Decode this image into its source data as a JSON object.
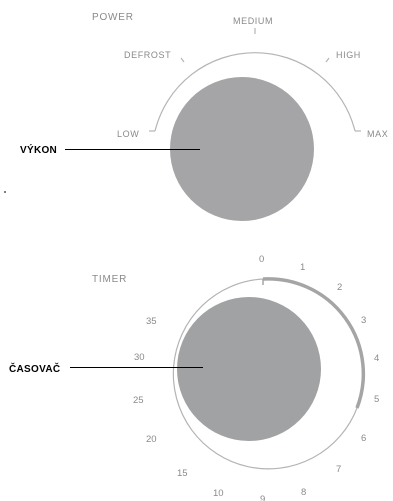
{
  "power": {
    "title": "POWER",
    "callout": "VÝKON",
    "knob_color": "#a5a5a7",
    "levels": [
      "LOW",
      "DEFROST",
      "MEDIUM",
      "HIGH",
      "MAX"
    ]
  },
  "timer": {
    "title": "TIMER",
    "callout": "ČASOVAČ",
    "knob_color": "#a1a2a3",
    "inner_scale": [
      "0",
      "1",
      "2",
      "3",
      "4",
      "5"
    ],
    "outer_scale": [
      "6",
      "7",
      "8",
      "9",
      "10",
      "15",
      "20",
      "25",
      "30",
      "35"
    ],
    "highlight_color": "#a5a5a5"
  },
  "colors": {
    "scale_line": "#b4b4b4",
    "label_text": "#8a8a8a",
    "callout_line": "#000000"
  }
}
